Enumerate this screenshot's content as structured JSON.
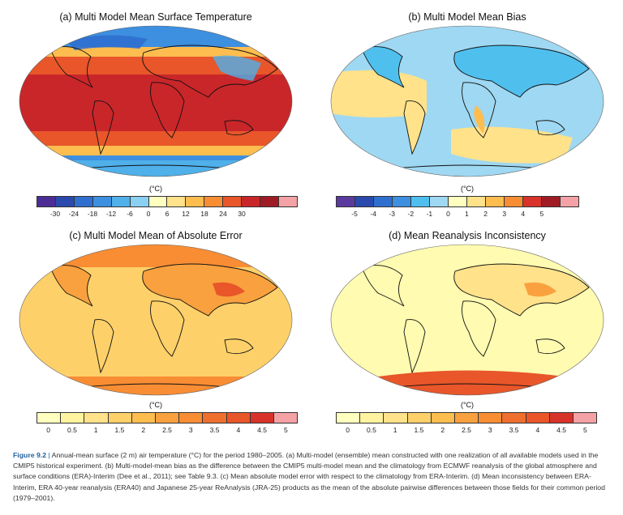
{
  "panels": [
    {
      "id": "a",
      "title": "(a) Multi Model Mean Surface Temperature",
      "unit": "(°C)",
      "colors": [
        "#4b2d95",
        "#2a4aad",
        "#2f6fcf",
        "#3d8fe0",
        "#4fb0ea",
        "#8ad0f0",
        "#ffffc0",
        "#ffe28a",
        "#fdbd4f",
        "#f88d34",
        "#e8562a",
        "#c9262a",
        "#a01c25",
        "#f4a2a6"
      ],
      "ticks": [
        "-30",
        "-24",
        "-18",
        "-12",
        "-6",
        "0",
        "6",
        "12",
        "18",
        "24",
        "30"
      ],
      "map_colors": {
        "pole": "#3d8fe0",
        "mid": "#fdbd4f",
        "warm": "#e8562a",
        "tropic": "#c9262a",
        "antarctic": "#4fb0ea"
      }
    },
    {
      "id": "b",
      "title": "(b) Multi Model Mean Bias",
      "unit": "(°C)",
      "colors": [
        "#5b3aa0",
        "#2a4aad",
        "#2f6fcf",
        "#3d8fe0",
        "#4fc0ee",
        "#9fd8f2",
        "#ffffc0",
        "#ffe28a",
        "#fdbd4f",
        "#f88d34",
        "#d8332a",
        "#a01c25",
        "#f4a2a6"
      ],
      "ticks": [
        "-5",
        "-4",
        "-3",
        "-2",
        "-1",
        "0",
        "1",
        "2",
        "3",
        "4",
        "5"
      ],
      "map_colors": {
        "base": "#9fd8f2",
        "ocean_warm": "#ffe28a",
        "land": "#4fc0ee",
        "hot": "#fdbd4f"
      }
    },
    {
      "id": "c",
      "title": "(c) Multi Model Mean of Absolute Error",
      "unit": "(°C)",
      "colors": [
        "#ffffc0",
        "#fff3a0",
        "#ffe28a",
        "#fdd06a",
        "#fdbd4f",
        "#f9a13e",
        "#f88d34",
        "#ef6f2e",
        "#e8562a",
        "#d8332a",
        "#f4a2a6"
      ],
      "ticks": [
        "0",
        "0.5",
        "1",
        "1.5",
        "2",
        "2.5",
        "3",
        "3.5",
        "4",
        "4.5",
        "5"
      ],
      "map_colors": {
        "base": "#fdd06a",
        "land": "#f9a13e",
        "hot": "#e8562a",
        "polar": "#f88d34"
      }
    },
    {
      "id": "d",
      "title": "(d) Mean Reanalysis Inconsistency",
      "unit": "(°C)",
      "colors": [
        "#ffffc0",
        "#fff3a0",
        "#ffe28a",
        "#fdd06a",
        "#fdbd4f",
        "#f9a13e",
        "#f88d34",
        "#ef6f2e",
        "#e8562a",
        "#d8332a",
        "#f4a2a6"
      ],
      "ticks": [
        "0",
        "0.5",
        "1",
        "1.5",
        "2",
        "2.5",
        "3",
        "3.5",
        "4",
        "4.5",
        "5"
      ],
      "map_colors": {
        "base": "#fffbb0",
        "land": "#ffe28a",
        "hot": "#f9a13e",
        "antarctic": "#e8562a"
      }
    }
  ],
  "caption": {
    "figure": "Figure 9.2",
    "separator": " | ",
    "text": "Annual-mean surface (2 m) air temperature (°C) for the period 1980–2005. (a) Multi-model (ensemble) mean constructed with one realization of all available models used in the CMIP5 historical experiment. (b) Multi-model-mean bias as the difference between the CMIP5 multi-model mean and the climatology from ECMWF reanalysis of the global atmosphere and surface conditions (ERA)-Interim (Dee et al., 2011); see Table 9.3. (c) Mean absolute model error with respect to the climatology from ERA-Interim. (d) Mean inconsistency between ERA-Interim, ERA 40-year reanalysis (ERA40) and Japanese 25-year ReAnalysis (JRA-25) products as the mean of the absolute pairwise differences between those fields for their common period (1979–2001)."
  }
}
